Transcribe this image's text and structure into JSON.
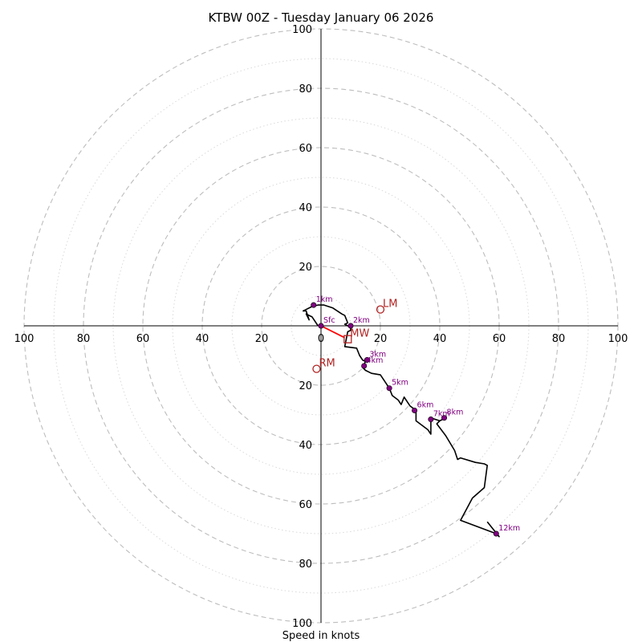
{
  "chart_data": {
    "type": "hodograph",
    "title": "KTBW 00Z - Tuesday January 06 2026",
    "xlabel": "Speed in knots",
    "units": "knots",
    "range": [
      -100,
      100
    ],
    "major_rings": [
      20,
      40,
      60,
      80,
      100
    ],
    "minor_rings": [
      10,
      30,
      50,
      70,
      90
    ],
    "x_tick_labels": [
      "100",
      "80",
      "60",
      "40",
      "20",
      "0",
      "20",
      "40",
      "60",
      "80",
      "100"
    ],
    "y_tick_labels_top": [
      "100",
      "80",
      "60",
      "40",
      "20"
    ],
    "y_tick_labels_bottom": [
      "20",
      "40",
      "60",
      "80",
      "100"
    ],
    "trace": [
      [
        -1,
        0
      ],
      [
        -3,
        3
      ],
      [
        -4,
        3.5
      ],
      [
        -5,
        4
      ],
      [
        -4,
        2
      ],
      [
        -5,
        5
      ],
      [
        -6,
        5
      ],
      [
        -3,
        6.5
      ],
      [
        -1,
        7
      ],
      [
        1,
        7
      ],
      [
        4,
        6
      ],
      [
        7,
        4
      ],
      [
        8,
        3.5
      ],
      [
        9,
        1
      ],
      [
        8,
        0.5
      ],
      [
        9,
        0
      ],
      [
        10,
        -0.5
      ],
      [
        10,
        -1.5
      ],
      [
        9,
        -2
      ],
      [
        8,
        -7
      ],
      [
        12,
        -7.5
      ],
      [
        13,
        -10
      ],
      [
        14,
        -11.5
      ],
      [
        15,
        -12
      ],
      [
        14,
        -14
      ],
      [
        15,
        -15
      ],
      [
        17,
        -16
      ],
      [
        20,
        -16.5
      ],
      [
        23,
        -21
      ],
      [
        24,
        -23.5
      ],
      [
        26,
        -25
      ],
      [
        27,
        -26.5
      ],
      [
        28,
        -24
      ],
      [
        30,
        -27
      ],
      [
        32,
        -28.5
      ],
      [
        32,
        -32
      ],
      [
        36,
        -35
      ],
      [
        37,
        -36.5
      ],
      [
        37,
        -31
      ],
      [
        40,
        -32
      ],
      [
        42,
        -31
      ],
      [
        40,
        -32
      ],
      [
        39,
        -33
      ],
      [
        42,
        -37
      ],
      [
        45,
        -42
      ],
      [
        46,
        -45
      ],
      [
        47,
        -44.5
      ],
      [
        52,
        -46
      ],
      [
        55,
        -46.5
      ],
      [
        56,
        -47
      ],
      [
        55,
        -54.5
      ],
      [
        51,
        -58
      ],
      [
        47,
        -65.5
      ],
      [
        59,
        -70
      ],
      [
        60,
        -71
      ],
      [
        56,
        -66
      ]
    ],
    "height_points": [
      {
        "label": "Sfc",
        "u": 0,
        "v": 0
      },
      {
        "label": "1km",
        "u": -2.5,
        "v": 7
      },
      {
        "label": "2km",
        "u": 10,
        "v": 0
      },
      {
        "label": "3km",
        "u": 15.5,
        "v": -11.5
      },
      {
        "label": "4km",
        "u": 14.5,
        "v": -13.5
      },
      {
        "label": "5km",
        "u": 23,
        "v": -21
      },
      {
        "label": "6km",
        "u": 31.5,
        "v": -28.5
      },
      {
        "label": "7km",
        "u": 37,
        "v": -31.5
      },
      {
        "label": "8km",
        "u": 41.5,
        "v": -31
      },
      {
        "label": "12km",
        "u": 59,
        "v": -70
      }
    ],
    "shear_vector": {
      "from": [
        0,
        0
      ],
      "to": [
        8,
        -4
      ]
    },
    "storm_motions": [
      {
        "label": "LM",
        "u": 20,
        "v": 5.5,
        "marker": "circle"
      },
      {
        "label": "MW",
        "u": 9,
        "v": -4.5,
        "marker": "square"
      },
      {
        "label": "RM",
        "u": -1.5,
        "v": -14.5,
        "marker": "circle"
      }
    ]
  },
  "colors": {
    "trace": "#000000",
    "height_points": "#800080",
    "shear_vector": "#ff0000",
    "storm_motion": "#b22222",
    "rings": "#bdbdbd"
  }
}
